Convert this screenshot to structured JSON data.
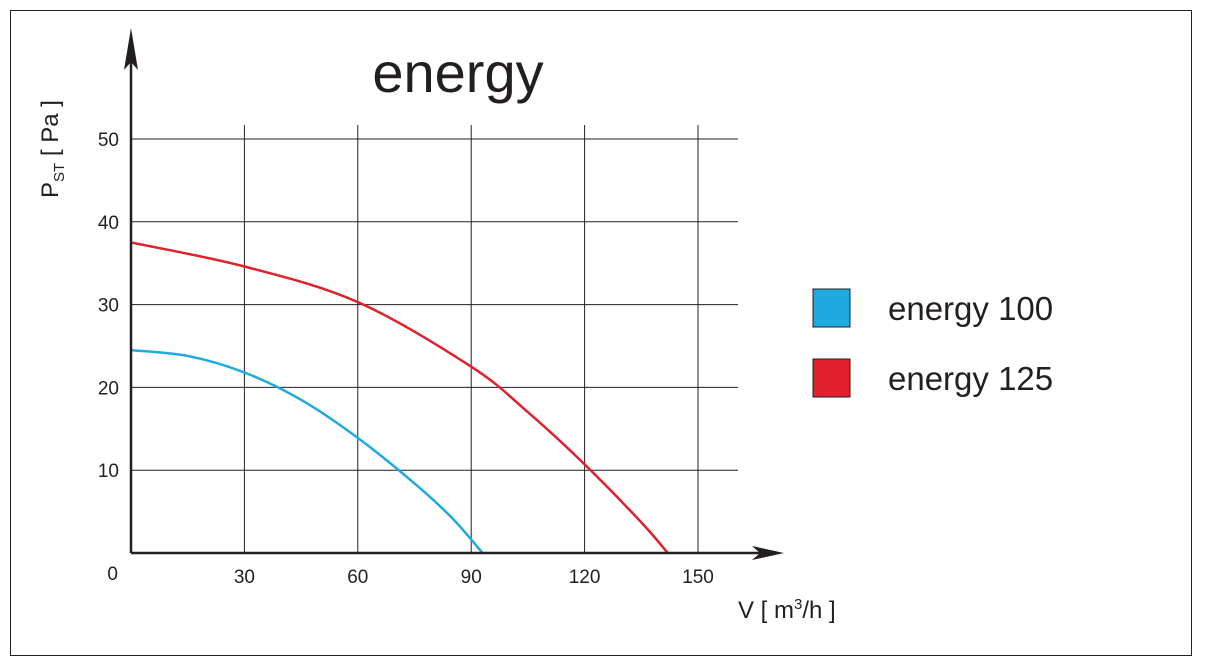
{
  "chart_data": {
    "type": "line",
    "title": "energy",
    "xlabel": "V [ m3/h ]",
    "ylabel": "PST [ Pa ]",
    "xlim": [
      0,
      170
    ],
    "ylim": [
      0,
      60
    ],
    "x_ticks": [
      0,
      30,
      60,
      90,
      120,
      150
    ],
    "y_ticks": [
      10,
      20,
      30,
      40,
      50
    ],
    "grid": true,
    "legend_position": "right",
    "series": [
      {
        "name": "energy  100",
        "color": "#1fa9e1",
        "x": [
          0,
          15,
          30,
          45,
          60,
          75,
          85,
          93
        ],
        "y": [
          24.5,
          23.8,
          21.8,
          18.5,
          13.9,
          8.4,
          4.2,
          0
        ]
      },
      {
        "name": "energy  125",
        "color": "#e0202a",
        "x": [
          0,
          30,
          60,
          90,
          105,
          120,
          135,
          142
        ],
        "y": [
          37.5,
          34.6,
          30.3,
          22.5,
          17.0,
          10.7,
          3.7,
          0
        ]
      }
    ]
  },
  "axis_text": {
    "y_main": "P",
    "y_sub": "ST",
    "y_unit": " [ Pa ]",
    "x_main": "V [ m",
    "x_sup": "3",
    "x_tail": "/h ]",
    "origin": "0"
  }
}
